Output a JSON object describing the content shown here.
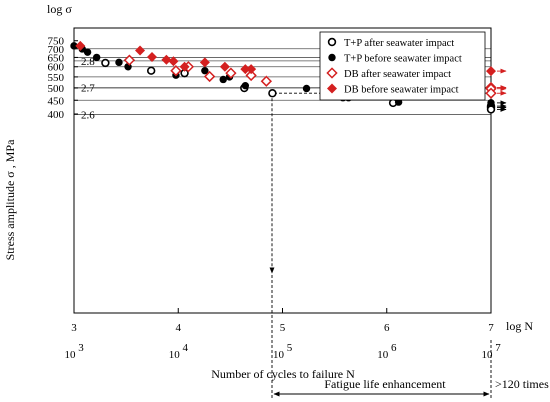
{
  "chart_data": {
    "type": "scatter",
    "title": "",
    "ylabel": "Stress amplitude σ , MPa",
    "xlabel": "Number of cycles to failure N",
    "log_sigma_label": "log σ",
    "log_n_label": "log N",
    "x_scale": "log",
    "y_scale": "log",
    "xlim": [
      1000,
      10000000
    ],
    "ylim": [
      400,
      780
    ],
    "grid": "horizontal",
    "legend_position": "top-right",
    "y_ticks": [
      "400",
      "450",
      "500",
      "550",
      "600",
      "650",
      "700",
      "750"
    ],
    "y_ticks_values": [
      400,
      450,
      500,
      550,
      600,
      650,
      700,
      750
    ],
    "log_sigma_ticks": [
      "2.6",
      "2.7",
      "2.8"
    ],
    "log_sigma_ticks_values": [
      2.6,
      2.7,
      2.8
    ],
    "log_n_ticks": [
      "3",
      "4",
      "5",
      "6",
      "7"
    ],
    "log_n_ticks_values": [
      3,
      4,
      5,
      6,
      7
    ],
    "n_ticks": [
      {
        "base": "10",
        "exp": "3",
        "value": 1000
      },
      {
        "base": "10",
        "exp": "4",
        "value": 10000
      },
      {
        "base": "10",
        "exp": "5",
        "value": 100000
      },
      {
        "base": "10",
        "exp": "6",
        "value": 1000000
      },
      {
        "base": "10",
        "exp": "7",
        "value": 10000000
      }
    ],
    "series": [
      {
        "name": "T+P after seawater impact",
        "marker": "open-circle",
        "color": "#000000",
        "points": [
          [
            2000,
            620
          ],
          [
            5500,
            580
          ],
          [
            11500,
            568
          ],
          [
            43000,
            500
          ],
          [
            80000,
            478
          ],
          [
            1150000,
            440
          ],
          [
            10000000,
            428
          ],
          [
            10000000,
            423
          ],
          [
            10000000,
            416
          ]
        ]
      },
      {
        "name": "T+P before seawater impact",
        "marker": "filled-circle",
        "color": "#000000",
        "points": [
          [
            1000,
            718
          ],
          [
            1200,
            699
          ],
          [
            1350,
            680
          ],
          [
            1650,
            650
          ],
          [
            2700,
            623
          ],
          [
            3300,
            600
          ],
          [
            9500,
            558
          ],
          [
            18000,
            580
          ],
          [
            27000,
            538
          ],
          [
            31000,
            550
          ],
          [
            44000,
            510
          ],
          [
            170000,
            498
          ],
          [
            380000,
            460
          ],
          [
            430000,
            460
          ],
          [
            1300000,
            443
          ],
          [
            10000000,
            440
          ]
        ]
      },
      {
        "name": "DB after seawater impact",
        "marker": "open-diamond",
        "color": "#d42020",
        "points": [
          [
            3400,
            635
          ],
          [
            9500,
            580
          ],
          [
            12500,
            600
          ],
          [
            20000,
            552
          ],
          [
            32000,
            568
          ],
          [
            50000,
            557
          ],
          [
            70000,
            530
          ],
          [
            10000000,
            502
          ],
          [
            10000000,
            497
          ],
          [
            10000000,
            478
          ]
        ]
      },
      {
        "name": "DB before seawater impact",
        "marker": "filled-diamond",
        "color": "#d42020",
        "points": [
          [
            1150,
            718
          ],
          [
            4300,
            690
          ],
          [
            5600,
            652
          ],
          [
            7700,
            637
          ],
          [
            9000,
            629
          ],
          [
            11500,
            600
          ],
          [
            18000,
            623
          ],
          [
            28000,
            600
          ],
          [
            44000,
            588
          ],
          [
            50000,
            588
          ],
          [
            800000,
            583
          ],
          [
            10000000,
            578
          ]
        ]
      }
    ],
    "annotations": {
      "enhancement_label": "Fatigue life enhancement",
      "enhancement_times": ">120 times"
    }
  }
}
